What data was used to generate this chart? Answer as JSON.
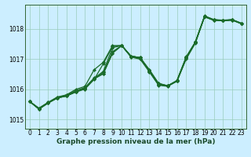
{
  "title": "Graphe pression niveau de la mer (hPa)",
  "bg_color": "#cceeff",
  "grid_color": "#99ccbb",
  "line_color": "#1a6b2a",
  "xlim": [
    -0.5,
    23.5
  ],
  "ylim": [
    1014.7,
    1018.8
  ],
  "xticks": [
    0,
    1,
    2,
    3,
    4,
    5,
    6,
    7,
    8,
    9,
    10,
    11,
    12,
    13,
    14,
    15,
    16,
    17,
    18,
    19,
    20,
    21,
    22,
    23
  ],
  "yticks": [
    1015,
    1016,
    1017,
    1018
  ],
  "series": [
    [
      1015.6,
      1015.35,
      1015.55,
      1015.72,
      1015.78,
      1015.92,
      1016.03,
      1016.35,
      1016.52,
      1017.2,
      1017.45,
      1017.1,
      1017.05,
      1016.65,
      1016.2,
      1016.12,
      1016.28,
      1017.05,
      1017.55,
      1018.42,
      1018.3,
      1018.28,
      1018.3,
      1018.18
    ],
    [
      1015.6,
      1015.38,
      1015.57,
      1015.75,
      1015.82,
      1015.96,
      1016.06,
      1016.38,
      1016.56,
      1017.25,
      1017.45,
      1017.1,
      1017.05,
      1016.62,
      1016.18,
      1016.12,
      1016.3,
      1017.08,
      1017.57,
      1018.43,
      1018.31,
      1018.29,
      1018.31,
      1018.19
    ],
    [
      1015.6,
      1015.38,
      1015.57,
      1015.74,
      1015.8,
      1015.93,
      1016.04,
      1016.36,
      1016.6,
      1017.38,
      1017.45,
      1017.08,
      1017.02,
      1016.6,
      1016.16,
      1016.12,
      1016.28,
      1017.05,
      1017.57,
      1018.41,
      1018.3,
      1018.28,
      1018.3,
      1018.18
    ],
    [
      1015.6,
      1015.36,
      1015.56,
      1015.71,
      1015.79,
      1015.91,
      1016.01,
      1016.33,
      1016.85,
      1017.42,
      1017.45,
      1017.07,
      1017.0,
      1016.58,
      1016.14,
      1016.1,
      1016.27,
      1017.03,
      1017.56,
      1018.4,
      1018.29,
      1018.27,
      1018.29,
      1018.17
    ]
  ],
  "series2": [
    [
      1015.6,
      1015.35,
      1015.55,
      1015.72,
      1015.78,
      1015.92,
      1016.03,
      1016.35,
      1016.52,
      1017.2,
      1017.45,
      1017.1,
      1017.05,
      1016.65,
      1016.2,
      1016.12,
      1016.28,
      1017.05,
      1017.55,
      1018.42,
      1018.3,
      1018.28,
      1018.3,
      1018.18
    ],
    [
      1015.6,
      1015.35,
      1015.55,
      1015.72,
      1015.82,
      1016.0,
      1016.1,
      1016.65,
      1016.9,
      1017.45,
      1017.45,
      1017.1,
      1017.05,
      1016.6,
      1016.15,
      1016.12,
      1016.27,
      1017.0,
      1017.53,
      1018.4,
      1018.28,
      1018.27,
      1018.29,
      1018.17
    ]
  ],
  "x": [
    0,
    1,
    2,
    3,
    4,
    5,
    6,
    7,
    8,
    9,
    10,
    11,
    12,
    13,
    14,
    15,
    16,
    17,
    18,
    19,
    20,
    21,
    22,
    23
  ],
  "marker": "D",
  "markersize": 2.0,
  "linewidth": 0.9,
  "tick_fontsize": 5.5,
  "label_fontsize": 6.5,
  "label_bold": true,
  "xlabel_color": "#1a4a2a"
}
